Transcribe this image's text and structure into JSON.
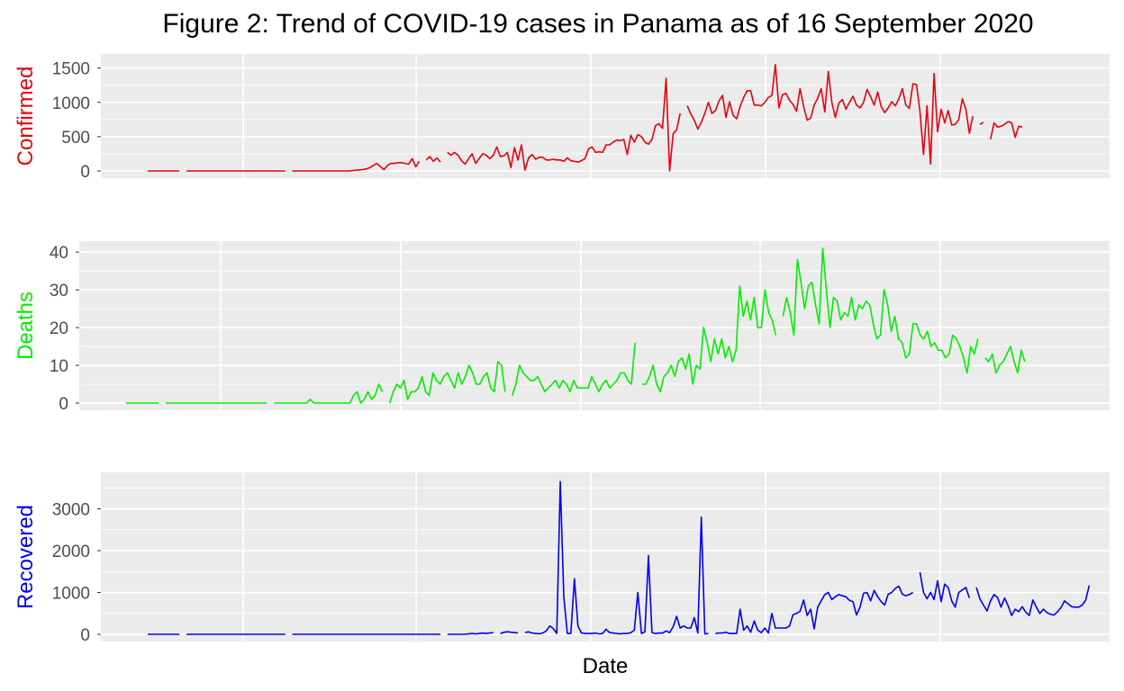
{
  "title": "Figure 2: Trend of COVID-19 cases in Panama as of 16 September 2020",
  "chart_data": [
    {
      "type": "line",
      "ylabel": "Confirmed",
      "color": "#e8000b",
      "ylim": [
        0,
        1600
      ],
      "yticks": [
        0,
        500,
        1000,
        1500
      ],
      "x_range": [
        0,
        260
      ],
      "gaps": [
        10,
        40,
        78,
        84,
        152,
        235,
        238
      ],
      "values": [
        0,
        0,
        0,
        0,
        0,
        0,
        0,
        0,
        0,
        0,
        0,
        0,
        0,
        0,
        0,
        0,
        0,
        0,
        0,
        0,
        0,
        0,
        0,
        0,
        0,
        0,
        0,
        0,
        0,
        0,
        0,
        0,
        0,
        0,
        0,
        0,
        0,
        0,
        0,
        0,
        0,
        0,
        0,
        0,
        0,
        0,
        0,
        0,
        0,
        0,
        0,
        0,
        0,
        0,
        0,
        0,
        0,
        0,
        5,
        10,
        15,
        20,
        30,
        50,
        80,
        110,
        60,
        20,
        80,
        110,
        110,
        120,
        120,
        110,
        100,
        180,
        60,
        140,
        170,
        160,
        210,
        140,
        190,
        130,
        160,
        270,
        230,
        270,
        230,
        150,
        100,
        180,
        250,
        110,
        180,
        250,
        230,
        180,
        230,
        350,
        210,
        220,
        270,
        50,
        340,
        160,
        380,
        10,
        190,
        240,
        170,
        200,
        200,
        160,
        160,
        170,
        160,
        160,
        140,
        190,
        150,
        140,
        130,
        150,
        180,
        320,
        350,
        270,
        280,
        270,
        380,
        380,
        420,
        450,
        440,
        460,
        240,
        520,
        420,
        530,
        500,
        420,
        390,
        460,
        660,
        690,
        620,
        1350,
        0,
        540,
        600,
        840,
        930,
        950,
        830,
        740,
        610,
        710,
        840,
        1000,
        840,
        880,
        1020,
        1100,
        780,
        1010,
        810,
        760,
        940,
        1070,
        1170,
        1170,
        960,
        960,
        950,
        1000,
        1070,
        1100,
        1550,
        920,
        1110,
        1130,
        1030,
        970,
        870,
        1200,
        940,
        740,
        770,
        960,
        1060,
        1200,
        860,
        1450,
        1000,
        780,
        990,
        1040,
        900,
        1000,
        1090,
        960,
        920,
        1000,
        1190,
        1080,
        960,
        1150,
        940,
        850,
        920,
        1010,
        950,
        1050,
        1200,
        960,
        910,
        1270,
        1260,
        860,
        240,
        950,
        100,
        1420,
        570,
        900,
        700,
        880,
        670,
        680,
        750,
        1050,
        900,
        550,
        800,
        700,
        680,
        710,
        670,
        460,
        700,
        640,
        650,
        680,
        720,
        700,
        490,
        650,
        640
      ]
    },
    {
      "type": "line",
      "ylabel": "Deaths",
      "color": "#00ee00",
      "ylim": [
        0,
        41
      ],
      "yticks": [
        0,
        10,
        20,
        30,
        40
      ],
      "x_range": [
        0,
        260
      ],
      "gaps": [
        10,
        40,
        72,
        106,
        142,
        181,
        237
      ],
      "values": [
        0,
        0,
        0,
        0,
        0,
        0,
        0,
        0,
        0,
        0,
        0,
        0,
        0,
        0,
        0,
        0,
        0,
        0,
        0,
        0,
        0,
        0,
        0,
        0,
        0,
        0,
        0,
        0,
        0,
        0,
        0,
        0,
        0,
        0,
        0,
        0,
        0,
        0,
        0,
        0,
        0,
        0,
        0,
        0,
        0,
        0,
        0,
        0,
        0,
        0,
        0,
        1,
        0,
        0,
        0,
        0,
        0,
        0,
        0,
        0,
        0,
        0,
        0,
        2,
        3,
        0,
        1,
        3,
        1,
        2,
        5,
        3,
        7,
        0,
        3,
        5,
        4,
        6,
        1,
        3,
        3,
        4,
        7,
        3,
        2,
        8,
        6,
        5,
        7,
        8,
        6,
        4,
        8,
        5,
        7,
        10,
        8,
        5,
        5,
        7,
        8,
        4,
        3,
        11,
        10,
        3,
        5,
        2,
        5,
        10,
        8,
        7,
        6,
        6,
        7,
        5,
        3,
        4,
        5,
        6,
        4,
        6,
        5,
        3,
        6,
        4,
        4,
        4,
        4,
        7,
        5,
        3,
        5,
        6,
        4,
        5,
        6,
        8,
        8,
        6,
        5,
        16,
        10,
        5,
        5,
        7,
        10,
        5,
        3,
        7,
        8,
        10,
        7,
        11,
        12,
        9,
        13,
        5,
        10,
        9,
        20,
        16,
        11,
        17,
        13,
        17,
        12,
        15,
        11,
        14,
        31,
        23,
        27,
        22,
        28,
        20,
        20,
        30,
        24,
        22,
        18,
        21,
        23,
        28,
        24,
        18,
        38,
        32,
        25,
        31,
        32,
        26,
        21,
        41,
        30,
        20,
        28,
        27,
        22,
        24,
        23,
        28,
        22,
        26,
        25,
        27,
        26,
        21,
        17,
        18,
        30,
        26,
        19,
        23,
        17,
        16,
        12,
        13,
        21,
        21,
        18,
        17,
        19,
        15,
        16,
        14,
        14,
        12,
        13,
        18,
        17,
        15,
        12,
        8,
        15,
        13,
        17,
        12,
        12,
        11,
        13,
        8,
        10,
        11,
        13,
        15,
        11,
        8,
        14,
        11
      ]
    },
    {
      "type": "line",
      "ylabel": "Recovered",
      "color": "#0000ee",
      "ylim": [
        0,
        3700
      ],
      "yticks": [
        0,
        1000,
        2000,
        3000
      ],
      "x_range": [
        0,
        260
      ],
      "gaps": [
        10,
        40,
        84,
        99,
        106,
        160,
        218,
        234
      ],
      "values": [
        0,
        0,
        0,
        0,
        0,
        0,
        0,
        0,
        0,
        0,
        0,
        0,
        0,
        0,
        0,
        0,
        0,
        0,
        0,
        0,
        0,
        0,
        0,
        0,
        0,
        0,
        0,
        0,
        0,
        0,
        0,
        0,
        0,
        0,
        0,
        0,
        0,
        0,
        0,
        0,
        0,
        0,
        0,
        0,
        0,
        0,
        0,
        0,
        0,
        0,
        0,
        0,
        0,
        0,
        0,
        0,
        0,
        0,
        0,
        0,
        0,
        0,
        0,
        0,
        0,
        0,
        0,
        0,
        0,
        0,
        0,
        0,
        0,
        0,
        0,
        0,
        0,
        0,
        0,
        0,
        0,
        0,
        0,
        0,
        0,
        0,
        0,
        0,
        0,
        0,
        0,
        10,
        20,
        10,
        20,
        30,
        20,
        30,
        40,
        30,
        20,
        50,
        60,
        50,
        40,
        30,
        120,
        40,
        60,
        30,
        20,
        10,
        30,
        80,
        200,
        140,
        20,
        3650,
        900,
        20,
        20,
        1330,
        200,
        30,
        20,
        20,
        20,
        30,
        10,
        20,
        120,
        40,
        30,
        20,
        10,
        20,
        20,
        40,
        100,
        1000,
        20,
        60,
        1880,
        40,
        20,
        30,
        30,
        80,
        40,
        180,
        430,
        150,
        200,
        150,
        150,
        400,
        30,
        2800,
        10,
        20,
        30,
        20,
        30,
        30,
        50,
        20,
        20,
        20,
        600,
        100,
        200,
        50,
        320,
        100,
        40,
        150,
        30,
        500,
        150,
        150,
        150,
        150,
        200,
        470,
        500,
        550,
        820,
        450,
        600,
        130,
        650,
        800,
        950,
        1000,
        830,
        900,
        950,
        920,
        900,
        810,
        780,
        460,
        650,
        980,
        1000,
        800,
        1050,
        900,
        780,
        700,
        960,
        1000,
        1100,
        1150,
        960,
        920,
        950,
        1000,
        1100,
        1480,
        1000,
        850,
        1000,
        830,
        1280,
        780,
        1200,
        1120,
        800,
        650,
        1000,
        1060,
        1120,
        870,
        1350,
        1120,
        850,
        700,
        560,
        800,
        950,
        880,
        650,
        870,
        680,
        450,
        600,
        540,
        660,
        530,
        450,
        820,
        650,
        500,
        600,
        520,
        480,
        460,
        540,
        640,
        800,
        730,
        660,
        650,
        650,
        700,
        820,
        1170
      ]
    }
  ],
  "xlabel": "Date"
}
